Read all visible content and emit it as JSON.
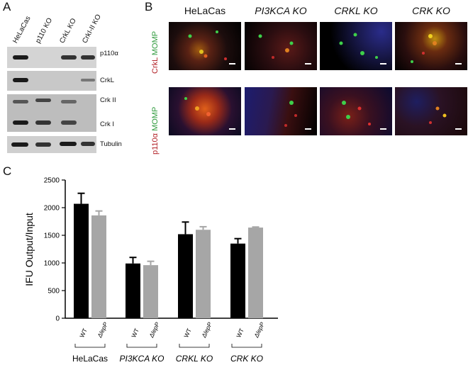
{
  "panel_a": {
    "letter": "A",
    "lanes": [
      "HeLaCas",
      "p110 KO",
      "CrkL KO",
      "CrkI-II KO"
    ],
    "labels": [
      "p110α",
      "CrkL",
      "Crk II",
      "Crk I",
      "Tubulin"
    ]
  },
  "panel_b": {
    "letter": "B",
    "columns": [
      "HeLaCas",
      "PI3KCA KO",
      "CRKL KO",
      "CRK KO"
    ],
    "rows": [
      {
        "red": "CrkL",
        "green": "MOMP"
      },
      {
        "red": "p110α",
        "green": "MOMP"
      }
    ]
  },
  "panel_c": {
    "letter": "C",
    "ylabel": "IFU Output/Input",
    "yticks": [
      "0",
      "500",
      "1000",
      "1500",
      "2000",
      "2500"
    ],
    "groups": [
      "HeLaCas",
      "PI3KCA KO",
      "CRKL KO",
      "CRK KO"
    ],
    "bar_labels": [
      "WT",
      "ΔlepP"
    ]
  },
  "chart_data": {
    "type": "bar",
    "title": "",
    "xlabel": "",
    "ylabel": "IFU Output/Input",
    "ylim": [
      0,
      2500
    ],
    "categories": [
      "HeLaCas",
      "PI3KCA KO",
      "CRKL KO",
      "CRK KO"
    ],
    "series": [
      {
        "name": "WT",
        "color": "#000000",
        "values": [
          2070,
          990,
          1520,
          1350
        ],
        "errors": [
          190,
          110,
          220,
          90
        ]
      },
      {
        "name": "ΔlepP",
        "color": "#a6a6a6",
        "values": [
          1860,
          960,
          1600,
          1640
        ],
        "errors": [
          80,
          70,
          55,
          10
        ]
      }
    ]
  },
  "colors": {
    "wt_bar": "#000000",
    "mutant_bar": "#a6a6a6",
    "red_channel": "#b3242a",
    "green_channel": "#2e9a3c"
  }
}
